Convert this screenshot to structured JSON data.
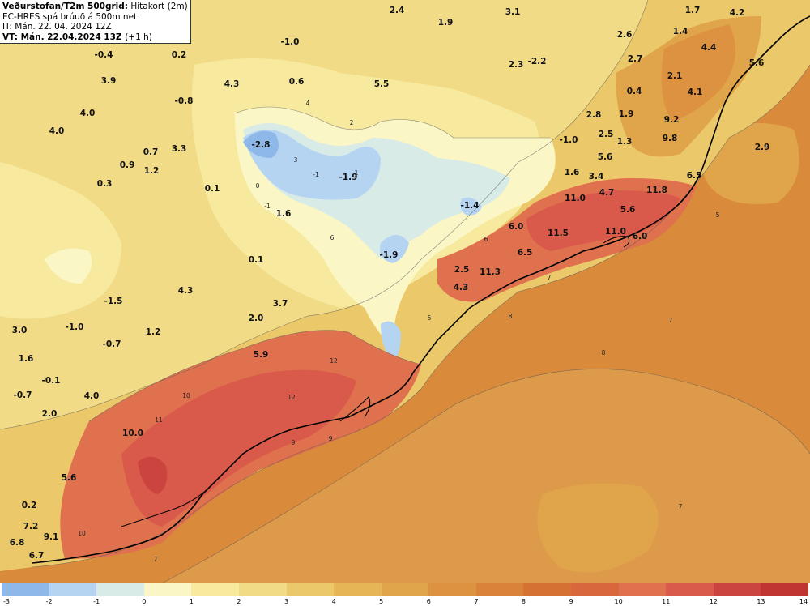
{
  "header": {
    "title": "Veðurstofan/T2m 500grid:",
    "subtitle": "Hitakort (2m)",
    "model": "EC-HRES spá brúuð á 500m net",
    "init_time": "IT: Mán. 22. 04. 2024 12Z",
    "valid_time": "VT: Mán. 22.04.2024 13Z",
    "lead": "(+1 h)"
  },
  "legend": {
    "ticks": [
      "-3",
      "-2",
      "-1",
      "0",
      "1",
      "2",
      "3",
      "4",
      "5",
      "6",
      "7",
      "8",
      "9",
      "10",
      "11",
      "12",
      "13",
      "14"
    ],
    "colors": [
      "#8db8e8",
      "#b5d4f2",
      "#d8ebe6",
      "#fbf6c6",
      "#f7ea9e",
      "#f2db86",
      "#ebc96a",
      "#e6b656",
      "#e0a44a",
      "#dc9240",
      "#d98239",
      "#d57133",
      "#d9673e",
      "#e0714e",
      "#d95a4a",
      "#cc4440",
      "#c03432"
    ]
  },
  "map": {
    "colors": {
      "sea": "#d98a3a",
      "sea_light": "#dd9a4a",
      "land_mid": "#ebc96a",
      "land_light": "#f2db86",
      "pale": "#fbf6c6",
      "cold": "#d8ebe6",
      "colder": "#b5d4f2",
      "coldest": "#8db8e8",
      "warm": "#d9673e",
      "warmer": "#d95a4a",
      "hot": "#cc4440",
      "coast": "#000000"
    },
    "labels": [
      {
        "text": "2.4"
      },
      {
        "text": "1.9"
      },
      {
        "text": "3.1"
      },
      {
        "text": "1.7"
      },
      {
        "text": "4.2"
      },
      {
        "text": "-0.4"
      },
      {
        "text": "0.2"
      },
      {
        "text": "-1.0"
      },
      {
        "text": "1.4"
      },
      {
        "text": "2.6"
      },
      {
        "text": "4.4"
      },
      {
        "text": "2.3"
      },
      {
        "text": "-2.2"
      },
      {
        "text": "2.7"
      },
      {
        "text": "5.6"
      },
      {
        "text": "3.9"
      },
      {
        "text": "4.3"
      },
      {
        "text": "0.6"
      },
      {
        "text": "5.5"
      },
      {
        "text": "2.1"
      },
      {
        "text": "-0.8"
      },
      {
        "text": "4.0"
      },
      {
        "text": "0.4"
      },
      {
        "text": "4.1"
      },
      {
        "text": "2.8"
      },
      {
        "text": "1.9"
      },
      {
        "text": "9.2"
      },
      {
        "text": "4.0"
      },
      {
        "text": "-2.8"
      },
      {
        "text": "-1.0"
      },
      {
        "text": "2.5"
      },
      {
        "text": "9.8"
      },
      {
        "text": "0.7"
      },
      {
        "text": "3.3"
      },
      {
        "text": "1.3"
      },
      {
        "text": "2.9"
      },
      {
        "text": "0.9"
      },
      {
        "text": "5.6"
      },
      {
        "text": "1.2"
      },
      {
        "text": "-1.9"
      },
      {
        "text": "1.6"
      },
      {
        "text": "3.4"
      },
      {
        "text": "6.5"
      },
      {
        "text": "0.3"
      },
      {
        "text": "0.1"
      },
      {
        "text": "11.8"
      },
      {
        "text": "11.0"
      },
      {
        "text": "4.7"
      },
      {
        "text": "-1.4"
      },
      {
        "text": "5.6"
      },
      {
        "text": "1.6"
      },
      {
        "text": "6.0"
      },
      {
        "text": "11.5"
      },
      {
        "text": "11.0"
      },
      {
        "text": "6.0"
      },
      {
        "text": "-1.9"
      },
      {
        "text": "6.5"
      },
      {
        "text": "0.1"
      },
      {
        "text": "11.3"
      },
      {
        "text": "2.5"
      },
      {
        "text": "4.3"
      },
      {
        "text": "4.3"
      },
      {
        "text": "-1.5"
      },
      {
        "text": "3.7"
      },
      {
        "text": "-1.0"
      },
      {
        "text": "2.0"
      },
      {
        "text": "3.0"
      },
      {
        "text": "1.2"
      },
      {
        "text": "-0.7"
      },
      {
        "text": "1.6"
      },
      {
        "text": "5.9"
      },
      {
        "text": "-0.1"
      },
      {
        "text": "-0.7"
      },
      {
        "text": "4.0"
      },
      {
        "text": "2.0"
      },
      {
        "text": "10.0"
      },
      {
        "text": "5.6"
      },
      {
        "text": "0.2"
      },
      {
        "text": "7.2"
      },
      {
        "text": "9.1"
      },
      {
        "text": "6.8"
      },
      {
        "text": "6.7"
      }
    ],
    "contour_labels": [
      {
        "text": "7"
      },
      {
        "text": "7"
      },
      {
        "text": "7"
      },
      {
        "text": "7"
      },
      {
        "text": "8"
      },
      {
        "text": "8"
      },
      {
        "text": "9"
      },
      {
        "text": "9"
      },
      {
        "text": "10"
      },
      {
        "text": "10"
      },
      {
        "text": "11"
      },
      {
        "text": "12"
      },
      {
        "text": "12"
      },
      {
        "text": "5"
      },
      {
        "text": "5"
      },
      {
        "text": "6"
      },
      {
        "text": "6"
      },
      {
        "text": "4"
      },
      {
        "text": "3"
      },
      {
        "text": "2"
      },
      {
        "text": "1"
      },
      {
        "text": "-1"
      },
      {
        "text": "0"
      },
      {
        "text": "-1"
      }
    ]
  }
}
